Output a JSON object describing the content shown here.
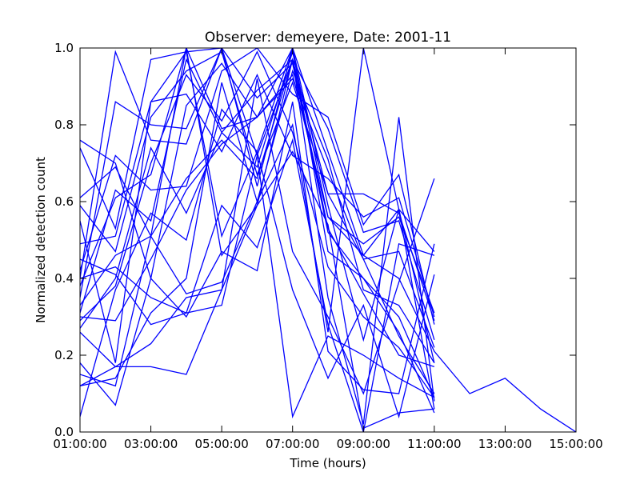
{
  "chart_data": {
    "type": "line",
    "title": "Observer: demeyere, Date: 2001-11",
    "xlabel": "Time (hours)",
    "ylabel": "Normalized detection count",
    "xlim": [
      "01:00:00",
      "15:00:00"
    ],
    "ylim": [
      0.0,
      1.0
    ],
    "x_ticks": [
      "01:00:00",
      "03:00:00",
      "05:00:00",
      "07:00:00",
      "09:00:00",
      "11:00:00",
      "13:00:00",
      "15:00:00"
    ],
    "y_ticks": [
      "0.0",
      "0.2",
      "0.4",
      "0.6",
      "0.8",
      "1.0"
    ],
    "grid": false,
    "legend": "none",
    "line_color": "#0000ff",
    "x": [
      "01:00:00",
      "02:00:00",
      "03:00:00",
      "04:00:00",
      "05:00:00",
      "06:00:00",
      "07:00:00",
      "08:00:00",
      "09:00:00",
      "10:00:00",
      "11:00:00",
      "12:00:00",
      "13:00:00",
      "14:00:00",
      "15:00:00"
    ],
    "series": [
      {
        "values": [
          0.76,
          0.7,
          0.4,
          0.85,
          0.96,
          0.82,
          1.0,
          0.59,
          0.24,
          0.58,
          0.18,
          null,
          null,
          null,
          null
        ]
      },
      {
        "values": [
          0.74,
          0.53,
          0.97,
          0.99,
          1.0,
          0.87,
          0.96,
          0.52,
          0.4,
          0.3,
          0.09,
          null,
          null,
          null,
          null
        ]
      },
      {
        "values": [
          0.59,
          0.47,
          0.82,
          0.94,
          0.99,
          0.67,
          0.91,
          0.62,
          0.62,
          0.57,
          0.29,
          null,
          null,
          null,
          null
        ]
      },
      {
        "values": [
          0.49,
          0.51,
          0.86,
          0.88,
          0.73,
          0.93,
          0.72,
          0.66,
          0.56,
          0.61,
          0.3,
          null,
          null,
          null,
          null
        ]
      },
      {
        "values": [
          0.42,
          0.72,
          0.63,
          0.64,
          0.94,
          1.0,
          0.88,
          0.82,
          0.54,
          0.67,
          0.28,
          null,
          null,
          null,
          null
        ]
      },
      {
        "values": [
          0.4,
          0.99,
          0.76,
          0.75,
          1.0,
          0.72,
          0.97,
          0.79,
          0.52,
          0.55,
          0.24,
          null,
          null,
          null,
          null
        ]
      },
      {
        "values": [
          0.38,
          0.61,
          0.67,
          1.0,
          0.79,
          0.82,
          0.92,
          0.68,
          0.45,
          0.47,
          0.22,
          null,
          null,
          null,
          null
        ]
      },
      {
        "values": [
          0.35,
          0.86,
          0.8,
          0.79,
          1.0,
          0.64,
          1.0,
          0.73,
          0.46,
          0.4,
          0.21,
          0.1,
          0.14,
          0.06,
          0.0
        ]
      },
      {
        "values": [
          0.31,
          0.63,
          0.55,
          0.97,
          0.78,
          0.89,
          0.97,
          0.53,
          0.36,
          0.2,
          0.17,
          null,
          null,
          null,
          null
        ]
      },
      {
        "values": [
          0.29,
          0.38,
          0.7,
          0.93,
          0.81,
          0.99,
          0.78,
          0.43,
          0.3,
          0.22,
          0.09,
          null,
          null,
          null,
          null
        ]
      },
      {
        "values": [
          0.27,
          0.4,
          0.74,
          0.57,
          0.78,
          0.69,
          0.99,
          0.56,
          0.49,
          0.56,
          0.31,
          null,
          null,
          null,
          null
        ]
      },
      {
        "values": [
          0.3,
          0.29,
          0.45,
          0.63,
          0.75,
          0.82,
          0.93,
          0.56,
          0.46,
          0.58,
          0.06,
          null,
          null,
          null,
          null
        ]
      },
      {
        "values": [
          0.15,
          0.12,
          0.51,
          0.66,
          0.76,
          0.66,
          0.97,
          0.62,
          0.45,
          0.25,
          0.1,
          null,
          null,
          null,
          null
        ]
      },
      {
        "values": [
          0.12,
          0.14,
          0.31,
          0.4,
          0.91,
          0.6,
          0.94,
          0.71,
          0.37,
          0.33,
          0.18,
          null,
          null,
          null,
          null
        ]
      },
      {
        "values": [
          0.04,
          0.37,
          0.57,
          0.5,
          0.84,
          0.73,
          1.0,
          0.47,
          0.4,
          0.26,
          0.05,
          null,
          null,
          null,
          null
        ]
      },
      {
        "values": [
          0.61,
          0.69,
          0.51,
          1.0,
          0.46,
          0.59,
          0.73,
          0.54,
          0.01,
          0.05,
          0.06,
          null,
          null,
          null,
          null
        ]
      },
      {
        "values": [
          0.55,
          0.18,
          0.86,
          0.99,
          0.51,
          0.73,
          0.37,
          0.14,
          0.33,
          0.04,
          0.41,
          null,
          null,
          null,
          null
        ]
      },
      {
        "values": [
          0.26,
          0.17,
          0.23,
          0.35,
          0.37,
          0.59,
          0.97,
          0.35,
          0.02,
          0.82,
          0.08,
          null,
          null,
          null,
          null
        ]
      },
      {
        "values": [
          0.18,
          0.07,
          0.4,
          0.3,
          0.47,
          0.42,
          0.86,
          0.21,
          0.11,
          0.1,
          0.49,
          null,
          null,
          null,
          null
        ]
      },
      {
        "values": [
          0.4,
          0.43,
          0.35,
          0.31,
          0.33,
          0.72,
          0.04,
          0.25,
          0.2,
          0.14,
          0.09,
          null,
          null,
          null,
          null
        ]
      },
      {
        "values": [
          0.12,
          0.17,
          0.17,
          0.15,
          0.37,
          0.92,
          0.47,
          0.3,
          0.1,
          0.39,
          0.66,
          null,
          null,
          null,
          null
        ]
      },
      {
        "values": [
          0.45,
          0.41,
          0.28,
          0.31,
          0.59,
          0.48,
          0.76,
          0.28,
          0.0,
          0.49,
          0.46,
          null,
          null,
          null,
          null
        ]
      },
      {
        "values": [
          0.33,
          0.46,
          0.51,
          0.36,
          0.39,
          0.6,
          0.8,
          0.26,
          1.0,
          0.58,
          0.47,
          null,
          null,
          null,
          null
        ]
      }
    ]
  }
}
